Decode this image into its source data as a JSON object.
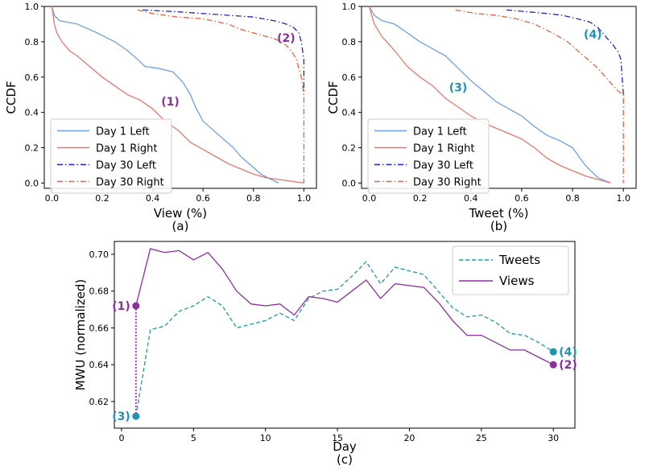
{
  "figure": {
    "captions": [
      "(a)",
      "(b)",
      "(c)"
    ]
  },
  "chart_data": [
    {
      "type": "line",
      "id": "a",
      "caption": "(a)",
      "xlabel": "View (%)",
      "ylabel": "CCDF",
      "xlim": [
        -0.03,
        1.05
      ],
      "ylim": [
        -0.03,
        1.0
      ],
      "xticks": [
        0.0,
        0.2,
        0.4,
        0.6,
        0.8,
        1.0
      ],
      "xtick_labels": [
        "0.0",
        "0.2",
        "0.4",
        "0.6",
        "0.8",
        "1.0"
      ],
      "yticks": [
        0.0,
        0.2,
        0.4,
        0.6,
        0.8,
        1.0
      ],
      "ytick_labels": [
        "0.0",
        "0.2",
        "0.4",
        "0.6",
        "0.8",
        "1.0"
      ],
      "legend_position": "lower-left",
      "series": [
        {
          "name": "Day 1 Left",
          "color": "#6f9fe8",
          "dash": "solid",
          "x": [
            0.0,
            0.01,
            0.03,
            0.1,
            0.18,
            0.25,
            0.3,
            0.34,
            0.37,
            0.42,
            0.48,
            0.52,
            0.55,
            0.57,
            0.6,
            0.64,
            0.68,
            0.72,
            0.75,
            0.79,
            0.83,
            0.87,
            0.9
          ],
          "y": [
            1.0,
            0.95,
            0.92,
            0.9,
            0.85,
            0.8,
            0.75,
            0.7,
            0.66,
            0.65,
            0.63,
            0.57,
            0.5,
            0.43,
            0.35,
            0.3,
            0.25,
            0.2,
            0.15,
            0.1,
            0.05,
            0.02,
            0.0
          ]
        },
        {
          "name": "Day 1 Right",
          "color": "#e8776e",
          "dash": "solid",
          "x": [
            0.0,
            0.01,
            0.02,
            0.04,
            0.07,
            0.1,
            0.15,
            0.2,
            0.25,
            0.3,
            0.35,
            0.4,
            0.45,
            0.5,
            0.55,
            0.6,
            0.65,
            0.7,
            0.75,
            0.8,
            0.85,
            0.9,
            0.95,
            1.0
          ],
          "y": [
            1.0,
            0.9,
            0.85,
            0.8,
            0.75,
            0.72,
            0.66,
            0.6,
            0.55,
            0.5,
            0.47,
            0.42,
            0.35,
            0.3,
            0.23,
            0.19,
            0.15,
            0.11,
            0.08,
            0.05,
            0.03,
            0.02,
            0.01,
            0.0
          ]
        },
        {
          "name": "Day 30 Left",
          "color": "#1f24c8",
          "dash": "dashdot",
          "x": [
            0.36,
            0.5,
            0.6,
            0.7,
            0.8,
            0.88,
            0.93,
            0.96,
            0.98,
            0.99,
            1.0,
            1.0
          ],
          "y": [
            0.98,
            0.97,
            0.96,
            0.95,
            0.94,
            0.92,
            0.9,
            0.88,
            0.85,
            0.8,
            0.7,
            0.5
          ]
        },
        {
          "name": "Day 30 Right",
          "color": "#e8613c",
          "dash": "dashdot",
          "x": [
            0.34,
            0.4,
            0.45,
            0.5,
            0.6,
            0.7,
            0.75,
            0.8,
            0.85,
            0.88,
            0.91,
            0.93,
            0.95,
            0.97,
            0.98,
            0.99,
            1.0,
            1.0
          ],
          "y": [
            0.98,
            0.96,
            0.95,
            0.94,
            0.93,
            0.9,
            0.87,
            0.85,
            0.83,
            0.82,
            0.8,
            0.78,
            0.75,
            0.7,
            0.65,
            0.6,
            0.5,
            0.0
          ]
        }
      ],
      "annotations": [
        {
          "text": "(1)",
          "color": "#8b2fa0",
          "x": 0.47,
          "y": 0.44
        },
        {
          "text": "(2)",
          "color": "#8b2fa0",
          "x": 0.93,
          "y": 0.8
        }
      ]
    },
    {
      "type": "line",
      "id": "b",
      "caption": "(b)",
      "xlabel": "Tweet (%)",
      "ylabel": "CCDF",
      "xlim": [
        -0.03,
        1.05
      ],
      "ylim": [
        -0.03,
        1.0
      ],
      "xticks": [
        0.0,
        0.2,
        0.4,
        0.6,
        0.8,
        1.0
      ],
      "xtick_labels": [
        "0.0",
        "0.2",
        "0.4",
        "0.6",
        "0.8",
        "1.0"
      ],
      "yticks": [
        0.0,
        0.2,
        0.4,
        0.6,
        0.8,
        1.0
      ],
      "ytick_labels": [
        "0.0",
        "0.2",
        "0.4",
        "0.6",
        "0.8",
        "1.0"
      ],
      "legend_position": "lower-left",
      "series": [
        {
          "name": "Day 1 Left",
          "color": "#6f9fe8",
          "dash": "solid",
          "x": [
            0.0,
            0.02,
            0.05,
            0.1,
            0.15,
            0.2,
            0.25,
            0.3,
            0.35,
            0.4,
            0.45,
            0.5,
            0.55,
            0.6,
            0.65,
            0.7,
            0.75,
            0.8,
            0.85,
            0.9,
            0.95
          ],
          "y": [
            1.0,
            0.95,
            0.92,
            0.9,
            0.85,
            0.8,
            0.76,
            0.72,
            0.65,
            0.58,
            0.52,
            0.46,
            0.42,
            0.38,
            0.32,
            0.27,
            0.24,
            0.2,
            0.1,
            0.03,
            0.0
          ]
        },
        {
          "name": "Day 1 Right",
          "color": "#e8776e",
          "dash": "solid",
          "x": [
            0.0,
            0.02,
            0.05,
            0.1,
            0.15,
            0.2,
            0.25,
            0.3,
            0.35,
            0.4,
            0.45,
            0.5,
            0.55,
            0.6,
            0.65,
            0.7,
            0.75,
            0.8,
            0.85,
            0.9,
            0.95
          ],
          "y": [
            1.0,
            0.9,
            0.83,
            0.75,
            0.66,
            0.6,
            0.55,
            0.48,
            0.43,
            0.38,
            0.34,
            0.31,
            0.28,
            0.25,
            0.2,
            0.14,
            0.1,
            0.07,
            0.04,
            0.02,
            0.0
          ]
        },
        {
          "name": "Day 30 Left",
          "color": "#1f24c8",
          "dash": "dashdot",
          "x": [
            0.54,
            0.62,
            0.7,
            0.76,
            0.82,
            0.87,
            0.9,
            0.93,
            0.96,
            0.98,
            0.99,
            1.0
          ],
          "y": [
            0.98,
            0.97,
            0.96,
            0.95,
            0.93,
            0.91,
            0.88,
            0.83,
            0.78,
            0.74,
            0.7,
            0.5
          ]
        },
        {
          "name": "Day 30 Right",
          "color": "#e8613c",
          "dash": "dashdot",
          "x": [
            0.34,
            0.42,
            0.5,
            0.58,
            0.65,
            0.72,
            0.78,
            0.82,
            0.86,
            0.9,
            0.93,
            0.96,
            0.98,
            1.0,
            1.0
          ],
          "y": [
            0.98,
            0.96,
            0.95,
            0.93,
            0.9,
            0.85,
            0.8,
            0.75,
            0.7,
            0.65,
            0.6,
            0.55,
            0.52,
            0.5,
            0.0
          ]
        }
      ],
      "annotations": [
        {
          "text": "(3)",
          "color": "#1f93b5",
          "x": 0.35,
          "y": 0.52
        },
        {
          "text": "(4)",
          "color": "#1f93b5",
          "x": 0.88,
          "y": 0.82
        }
      ]
    },
    {
      "type": "line",
      "id": "c",
      "caption": "(c)",
      "xlabel": "Day",
      "ylabel": "MWU (normalized)",
      "xlim": [
        -0.5,
        31.5
      ],
      "ylim": [
        0.6055,
        0.707
      ],
      "xticks": [
        0,
        5,
        10,
        15,
        20,
        25,
        30
      ],
      "xtick_labels": [
        "0",
        "5",
        "10",
        "15",
        "20",
        "25",
        "30"
      ],
      "yticks": [
        0.62,
        0.64,
        0.66,
        0.68,
        0.7
      ],
      "ytick_labels": [
        "0.62",
        "0.64",
        "0.66",
        "0.68",
        "0.70"
      ],
      "legend_position": "top-right",
      "series": [
        {
          "name": "Tweets",
          "color": "#1e9aa0",
          "dash": "dashed",
          "x": [
            1,
            2,
            3,
            4,
            5,
            6,
            7,
            8,
            9,
            10,
            11,
            12,
            13,
            14,
            15,
            16,
            17,
            18,
            19,
            20,
            21,
            22,
            23,
            24,
            25,
            26,
            27,
            28,
            29,
            30
          ],
          "y": [
            0.612,
            0.659,
            0.661,
            0.669,
            0.672,
            0.677,
            0.672,
            0.66,
            0.662,
            0.664,
            0.668,
            0.664,
            0.676,
            0.68,
            0.681,
            0.688,
            0.696,
            0.684,
            0.693,
            0.691,
            0.689,
            0.68,
            0.671,
            0.666,
            0.667,
            0.663,
            0.657,
            0.656,
            0.652,
            0.647
          ]
        },
        {
          "name": "Views",
          "color": "#8b2fa0",
          "dash": "solid",
          "x": [
            1,
            2,
            3,
            4,
            5,
            6,
            7,
            8,
            9,
            10,
            11,
            12,
            13,
            14,
            15,
            16,
            17,
            18,
            19,
            20,
            21,
            22,
            23,
            24,
            25,
            26,
            27,
            28,
            29,
            30
          ],
          "y": [
            0.672,
            0.703,
            0.701,
            0.702,
            0.697,
            0.701,
            0.692,
            0.68,
            0.673,
            0.672,
            0.673,
            0.667,
            0.677,
            0.676,
            0.674,
            0.68,
            0.686,
            0.676,
            0.684,
            0.683,
            0.682,
            0.674,
            0.664,
            0.656,
            0.656,
            0.652,
            0.648,
            0.648,
            0.644,
            0.64
          ]
        }
      ],
      "points": [
        {
          "label": "(1)",
          "x": 1,
          "y": 0.672,
          "color": "#8b2fa0",
          "side": "left"
        },
        {
          "label": "(3)",
          "x": 1,
          "y": 0.612,
          "color": "#1f93b5",
          "side": "left"
        },
        {
          "label": "(4)",
          "x": 30,
          "y": 0.647,
          "color": "#1f93b5",
          "side": "right"
        },
        {
          "label": "(2)",
          "x": 30,
          "y": 0.64,
          "color": "#8b2fa0",
          "side": "right"
        }
      ],
      "connector": {
        "from": 0,
        "to": 1,
        "color": "#d22fd4"
      }
    }
  ]
}
